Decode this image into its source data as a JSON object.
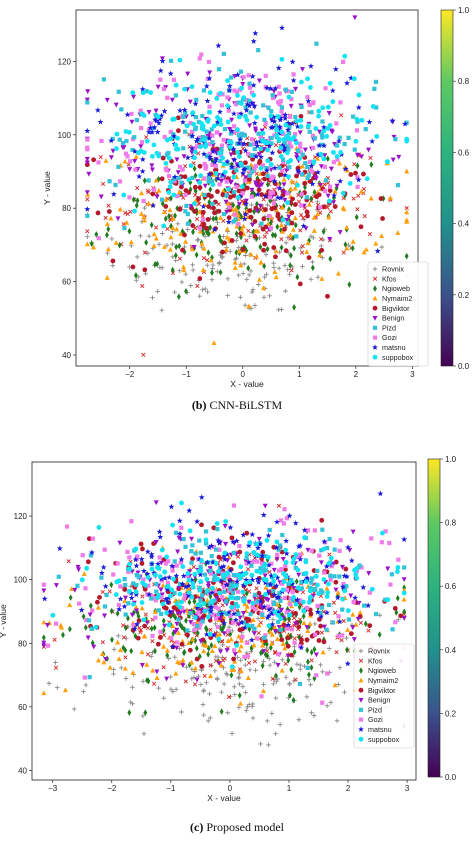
{
  "legend_series": [
    "Rovnix",
    "Kfos",
    "Ngioweb",
    "Nymaim2",
    "Bigviktor",
    "Benign",
    "Pizd",
    "Gozi",
    "matsnu",
    "suppobox"
  ],
  "colors": {
    "Rovnix": "#8a8a8a",
    "Kfos": "#d62728",
    "Ngioweb": "#1e7d1e",
    "Nymaim2": "#ff9f0a",
    "Bigviktor": "#b5172b",
    "Benign": "#9b10c9",
    "Pizd": "#33c3d8",
    "Gozi": "#f07ce9",
    "matsnu": "#1a1adb",
    "suppobox": "#10e3f2"
  },
  "chart_data": [
    {
      "type": "scatter",
      "caption_label": "(b)",
      "caption_text": "CNN-BiLSTM",
      "xlabel": "X - value",
      "ylabel": "Y - value",
      "xlim": [
        -2.95,
        3.1
      ],
      "ylim": [
        37,
        134
      ],
      "xticks": [
        -2,
        -1,
        0,
        1,
        2,
        3
      ],
      "yticks": [
        40,
        60,
        80,
        100,
        120
      ],
      "legend_position": "lower-right",
      "colorbar": {
        "min": 0.0,
        "max": 1.0,
        "ticks": [
          "0.0",
          "0.2",
          "0.4",
          "0.6",
          "0.8",
          "1.0"
        ]
      },
      "series": [
        {
          "name": "Rovnix",
          "marker": "plus",
          "center": [
            -0.2,
            68
          ],
          "spread": [
            1.15,
            9
          ]
        },
        {
          "name": "Kfos",
          "marker": "x",
          "center": [
            0.1,
            82
          ],
          "spread": [
            1.2,
            10
          ]
        },
        {
          "name": "Ngioweb",
          "marker": "diamond",
          "center": [
            -0.1,
            76
          ],
          "spread": [
            1.1,
            8
          ]
        },
        {
          "name": "Nymaim2",
          "marker": "triangle",
          "center": [
            0.1,
            78
          ],
          "spread": [
            1.2,
            9
          ]
        },
        {
          "name": "Bigviktor",
          "marker": "circle",
          "center": [
            0.0,
            83
          ],
          "spread": [
            1.1,
            9
          ]
        },
        {
          "name": "Benign",
          "marker": "tridown",
          "center": [
            0.0,
            96
          ],
          "spread": [
            1.2,
            12
          ]
        },
        {
          "name": "Pizd",
          "marker": "square",
          "center": [
            0.0,
            99
          ],
          "spread": [
            1.2,
            10
          ]
        },
        {
          "name": "Gozi",
          "marker": "square",
          "center": [
            0.0,
            98
          ],
          "spread": [
            1.25,
            11
          ]
        },
        {
          "name": "matsnu",
          "marker": "star",
          "center": [
            0.0,
            100
          ],
          "spread": [
            1.15,
            11
          ]
        },
        {
          "name": "suppobox",
          "marker": "circle",
          "center": [
            0.0,
            99
          ],
          "spread": [
            1.2,
            9
          ]
        }
      ]
    },
    {
      "type": "scatter",
      "caption_label": "(c)",
      "caption_text": "Proposed model",
      "xlabel": "X - value",
      "ylabel": "Y - value",
      "xlim": [
        -3.35,
        3.15
      ],
      "ylim": [
        37,
        137
      ],
      "xticks": [
        -3,
        -2,
        -1,
        0,
        1,
        2,
        3
      ],
      "yticks": [
        40,
        60,
        80,
        100,
        120
      ],
      "legend_position": "lower-right",
      "colorbar": {
        "min": 0.0,
        "max": 1.0,
        "ticks": [
          "0.0",
          "0.2",
          "0.4",
          "0.6",
          "0.8",
          "1.0"
        ]
      },
      "series": [
        {
          "name": "Rovnix",
          "marker": "plus",
          "center": [
            0.0,
            70
          ],
          "spread": [
            1.3,
            9
          ]
        },
        {
          "name": "Kfos",
          "marker": "x",
          "center": [
            0.0,
            88
          ],
          "spread": [
            1.3,
            10
          ]
        },
        {
          "name": "Ngioweb",
          "marker": "diamond",
          "center": [
            0.0,
            84
          ],
          "spread": [
            1.2,
            9
          ]
        },
        {
          "name": "Nymaim2",
          "marker": "triangle",
          "center": [
            0.0,
            86
          ],
          "spread": [
            1.3,
            10
          ]
        },
        {
          "name": "Bigviktor",
          "marker": "circle",
          "center": [
            0.0,
            93
          ],
          "spread": [
            1.2,
            10
          ]
        },
        {
          "name": "Benign",
          "marker": "tridown",
          "center": [
            0.0,
            95
          ],
          "spread": [
            1.3,
            11
          ]
        },
        {
          "name": "Pizd",
          "marker": "square",
          "center": [
            0.0,
            99
          ],
          "spread": [
            1.2,
            10
          ]
        },
        {
          "name": "Gozi",
          "marker": "square",
          "center": [
            0.0,
            97
          ],
          "spread": [
            1.3,
            11
          ]
        },
        {
          "name": "matsnu",
          "marker": "star",
          "center": [
            0.0,
            101
          ],
          "spread": [
            1.2,
            10
          ]
        },
        {
          "name": "suppobox",
          "marker": "circle",
          "center": [
            0.0,
            100
          ],
          "spread": [
            1.15,
            8
          ]
        }
      ]
    }
  ]
}
